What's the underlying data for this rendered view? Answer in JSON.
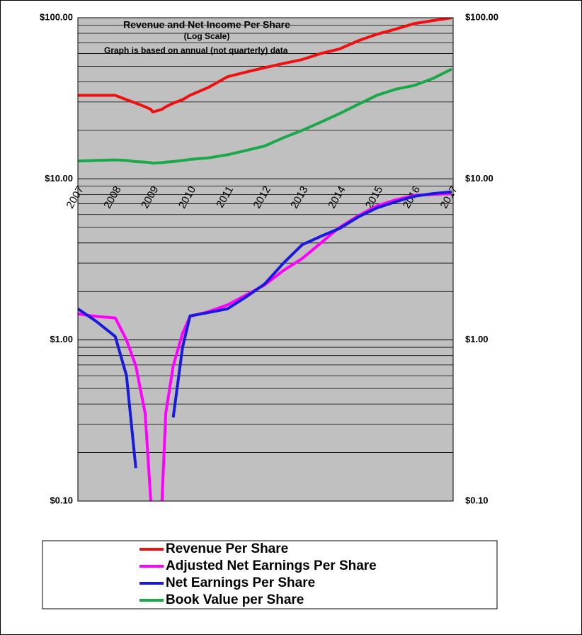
{
  "chart_data": {
    "type": "line",
    "title": "Revenue and Net Income Per Share",
    "subtitle": "(Log Scale)",
    "annotation": "Graph is based on annual (not quarterly) data",
    "log_scale": true,
    "grid": true,
    "minor_grid": true,
    "legend": "bottom",
    "xlim": [
      2007,
      2017
    ],
    "xticks": [
      2007,
      2008,
      2009,
      2010,
      2011,
      2012,
      2013,
      2014,
      2015,
      2016,
      2017
    ],
    "ylim": [
      0.1,
      100
    ],
    "yticks": [
      {
        "value": 0.1,
        "label": "$0.10"
      },
      {
        "value": 1,
        "label": "$1.00"
      },
      {
        "value": 10,
        "label": "$10.00"
      },
      {
        "value": 100,
        "label": "$100.00"
      }
    ],
    "x": [
      2007,
      2007.5,
      2008,
      2008.3,
      2008.55,
      2008.8,
      2008.95,
      2009,
      2009.25,
      2009.35,
      2009.55,
      2009.8,
      2010,
      2010.5,
      2011,
      2011.5,
      2012,
      2012.5,
      2013,
      2013.5,
      2014,
      2014.5,
      2015,
      2015.5,
      2016,
      2016.5,
      2017
    ],
    "series": [
      {
        "name": "Revenue Per Share",
        "color": "#ee1111",
        "values": [
          33,
          33,
          33,
          31,
          29.5,
          28,
          27,
          26,
          27,
          28,
          29.5,
          31,
          33,
          37,
          43,
          46,
          49,
          52,
          55,
          60,
          64,
          72,
          79,
          85,
          92,
          96,
          100
        ]
      },
      {
        "name": "Adjusted Net Earnings Per Share",
        "color": "#ff00ff",
        "values": [
          1.45,
          1.4,
          1.37,
          1.0,
          0.69,
          0.35,
          0.1,
          null,
          0.1,
          0.35,
          0.69,
          1.1,
          1.4,
          1.5,
          1.65,
          1.9,
          2.2,
          2.7,
          3.2,
          4.0,
          5.0,
          5.9,
          6.8,
          7.4,
          7.9,
          8.0,
          8.1
        ]
      },
      {
        "name": "Net Earnings Per Share",
        "color": "#1a1adc",
        "values": [
          1.56,
          1.3,
          1.05,
          0.6,
          0.16,
          null,
          null,
          null,
          null,
          null,
          0.33,
          0.9,
          1.41,
          1.48,
          1.56,
          1.85,
          2.23,
          3.0,
          3.9,
          4.4,
          4.92,
          5.8,
          6.6,
          7.2,
          7.8,
          8.1,
          8.3
        ]
      },
      {
        "name": "Book Value per Share",
        "color": "#1aa84a",
        "values": [
          12.9,
          13,
          13.1,
          13,
          12.8,
          12.7,
          12.6,
          12.5,
          12.6,
          12.7,
          12.8,
          13,
          13.2,
          13.5,
          14.1,
          15,
          16,
          18,
          20,
          22.5,
          25.4,
          29,
          33,
          36,
          38,
          42,
          48
        ]
      }
    ]
  }
}
